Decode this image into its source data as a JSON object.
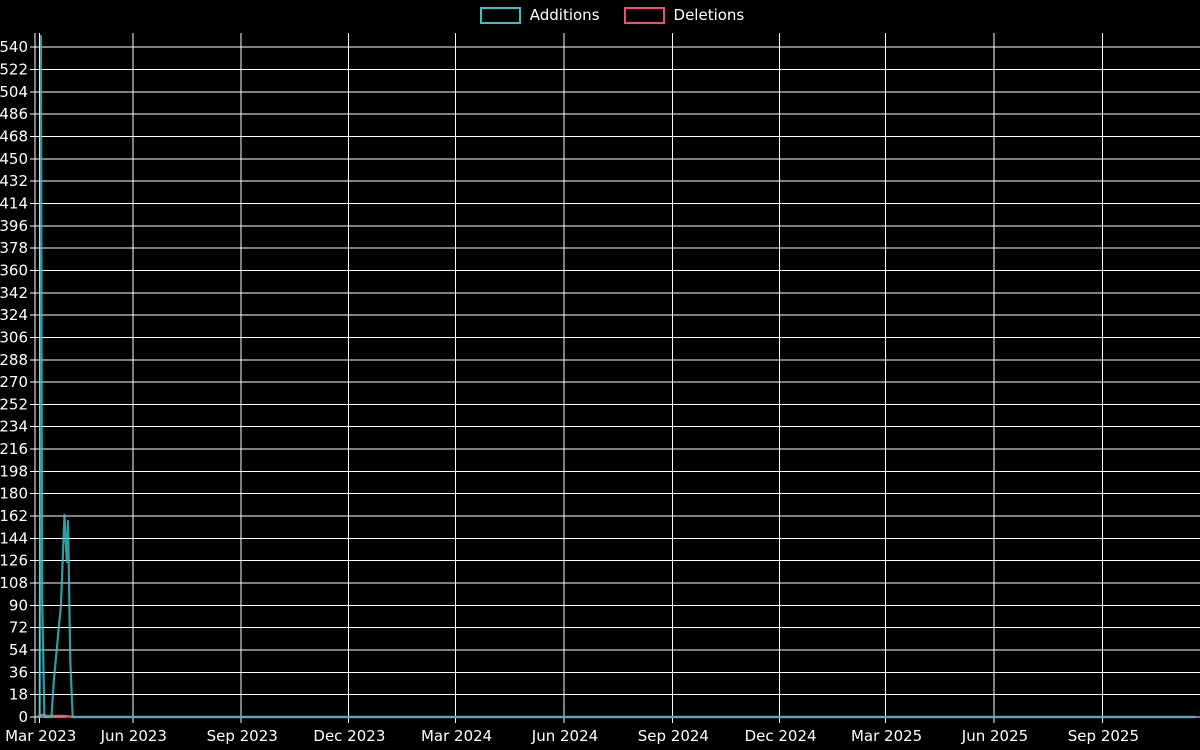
{
  "page": {
    "background_color": "#000000"
  },
  "chart_data": {
    "type": "line",
    "title": "",
    "legend": {
      "position": "top",
      "entries": [
        "Additions",
        "Deletions"
      ]
    },
    "background_color": "#000000",
    "text_color": "#ffffff",
    "grid_color": "#ffffff",
    "axis_color": "#ffffff",
    "grid": true,
    "x_axis": {
      "type": "time",
      "domain": [
        "2023-03-10",
        "2025-11-22"
      ],
      "ticks": [
        {
          "date": "2023-03-14",
          "label": "Mar 2023"
        },
        {
          "date": "2023-06-01",
          "label": "Jun 2023"
        },
        {
          "date": "2023-09-01",
          "label": "Sep 2023"
        },
        {
          "date": "2023-12-01",
          "label": "Dec 2023"
        },
        {
          "date": "2024-03-01",
          "label": "Mar 2024"
        },
        {
          "date": "2024-06-01",
          "label": "Jun 2024"
        },
        {
          "date": "2024-09-01",
          "label": "Sep 2024"
        },
        {
          "date": "2024-12-01",
          "label": "Dec 2024"
        },
        {
          "date": "2025-03-01",
          "label": "Mar 2025"
        },
        {
          "date": "2025-06-01",
          "label": "Jun 2025"
        },
        {
          "date": "2025-09-01",
          "label": "Sep 2025"
        }
      ]
    },
    "y_axis": {
      "min": 0,
      "max": 549,
      "tick_step": 18,
      "ticks": [
        0,
        18,
        36,
        54,
        72,
        90,
        108,
        126,
        144,
        162,
        180,
        198,
        216,
        234,
        252,
        270,
        288,
        306,
        324,
        342,
        360,
        378,
        396,
        414,
        432,
        450,
        468,
        486,
        504,
        522,
        540
      ]
    },
    "series": [
      {
        "name": "Additions",
        "color": "#3cc0c4",
        "stroke_opacity": 0.82,
        "points": [
          [
            "2023-03-11",
            0
          ],
          [
            "2023-03-14",
            0
          ],
          [
            "2023-03-15",
            549
          ],
          [
            "2023-03-16",
            97
          ],
          [
            "2023-03-18",
            0
          ],
          [
            "2023-03-24",
            0
          ],
          [
            "2023-03-26",
            30
          ],
          [
            "2023-04-01",
            90
          ],
          [
            "2023-04-04",
            163
          ],
          [
            "2023-04-06",
            125
          ],
          [
            "2023-04-07",
            158
          ],
          [
            "2023-04-09",
            45
          ],
          [
            "2023-04-11",
            0
          ],
          [
            "2025-11-19",
            0
          ]
        ]
      },
      {
        "name": "Deletions",
        "color": "#f0506e",
        "stroke_opacity": 1,
        "points": [
          [
            "2023-03-11",
            0
          ],
          [
            "2023-03-14",
            1
          ],
          [
            "2023-03-16",
            2
          ],
          [
            "2023-03-20",
            1
          ],
          [
            "2023-04-04",
            1
          ],
          [
            "2023-04-11",
            0
          ],
          [
            "2025-11-19",
            0
          ]
        ]
      }
    ]
  }
}
